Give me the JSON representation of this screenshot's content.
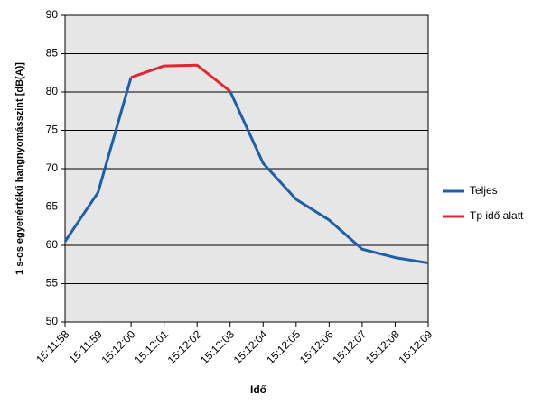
{
  "chart_data": {
    "type": "line",
    "x_label": "Idő",
    "y_label": "1 s-os egyenértékű hangnyomásszint [dB(A)]",
    "categories": [
      "15:11:58",
      "15:11:59",
      "15:12:00",
      "15:12:01",
      "15:12:02",
      "15:12:03",
      "15:12:04",
      "15:12:05",
      "15:12:06",
      "15:12:07",
      "15:12:08",
      "15:12:09"
    ],
    "series": [
      {
        "name": "Teljes",
        "color": "#1f5fa8",
        "values": [
          60.5,
          66.9,
          81.9,
          null,
          null,
          80.1,
          70.7,
          66.0,
          63.3,
          59.5,
          58.4,
          57.7
        ]
      },
      {
        "name": "Tp idő alatt",
        "color": "#e0262e",
        "values": [
          null,
          null,
          81.9,
          83.4,
          83.5,
          80.1,
          null,
          null,
          null,
          null,
          null,
          null
        ]
      }
    ],
    "ylim": [
      50,
      90
    ],
    "yticks": [
      50,
      55,
      60,
      65,
      70,
      75,
      80,
      85,
      90
    ],
    "grid": true,
    "legend": "right"
  }
}
